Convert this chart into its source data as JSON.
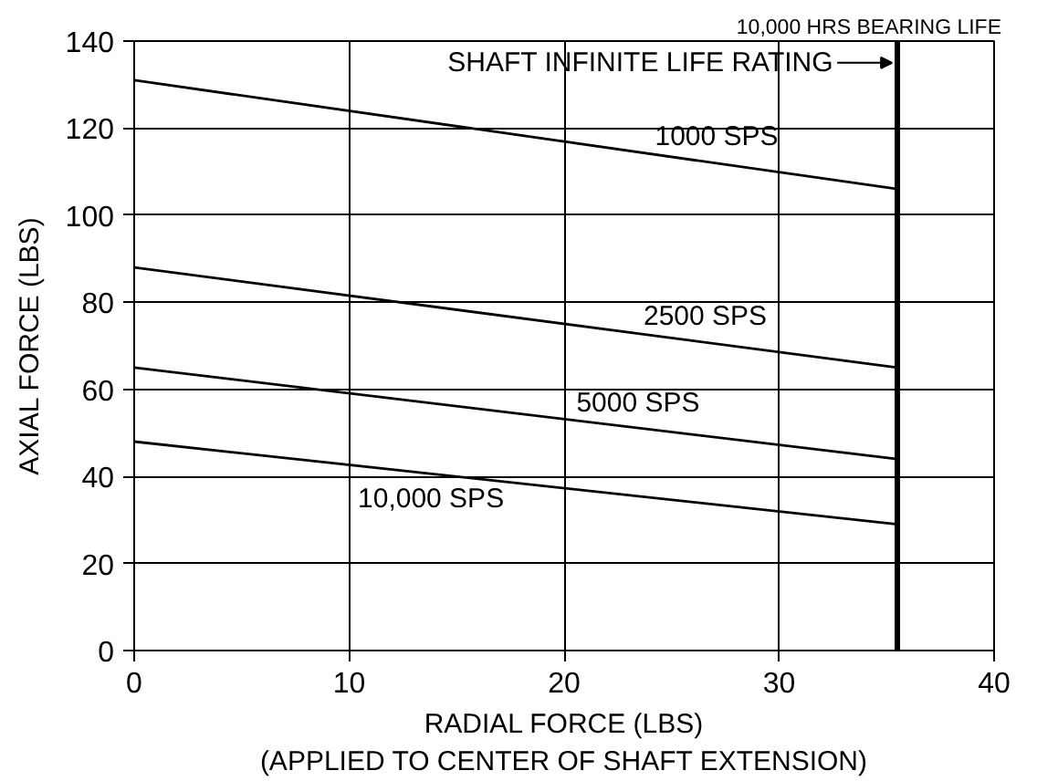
{
  "chart_data": {
    "type": "line",
    "xlabel": "RADIAL FORCE (LBS)\n(APPLIED TO CENTER OF SHAFT EXTENSION)",
    "ylabel": "AXIAL FORCE (LBS)",
    "x": [
      0,
      35.5
    ],
    "series": [
      {
        "name": "1000 SPS",
        "color": "#000000",
        "values": [
          131,
          106
        ]
      },
      {
        "name": "2500 SPS",
        "color": "#000000",
        "values": [
          88,
          65
        ]
      },
      {
        "name": "5000 SPS",
        "color": "#000000",
        "values": [
          65,
          44
        ]
      },
      {
        "name": "10,000 SPS",
        "color": "#000000",
        "values": [
          48,
          29
        ]
      }
    ],
    "xlim": [
      0,
      40
    ],
    "xticks": [
      0,
      10,
      20,
      30,
      40
    ],
    "ylim": [
      0,
      140
    ],
    "yticks": [
      0,
      20,
      40,
      60,
      80,
      100,
      120,
      140
    ],
    "grid": true,
    "ref_lines": [
      {
        "axis": "x",
        "value": 35.5,
        "label": "10,000 HRS BEARING LIFE",
        "color": "#000000"
      }
    ],
    "annotations": [
      {
        "text": "SHAFT INFINITE LIFE RATING",
        "x": 35.5,
        "y": 135
      }
    ]
  }
}
